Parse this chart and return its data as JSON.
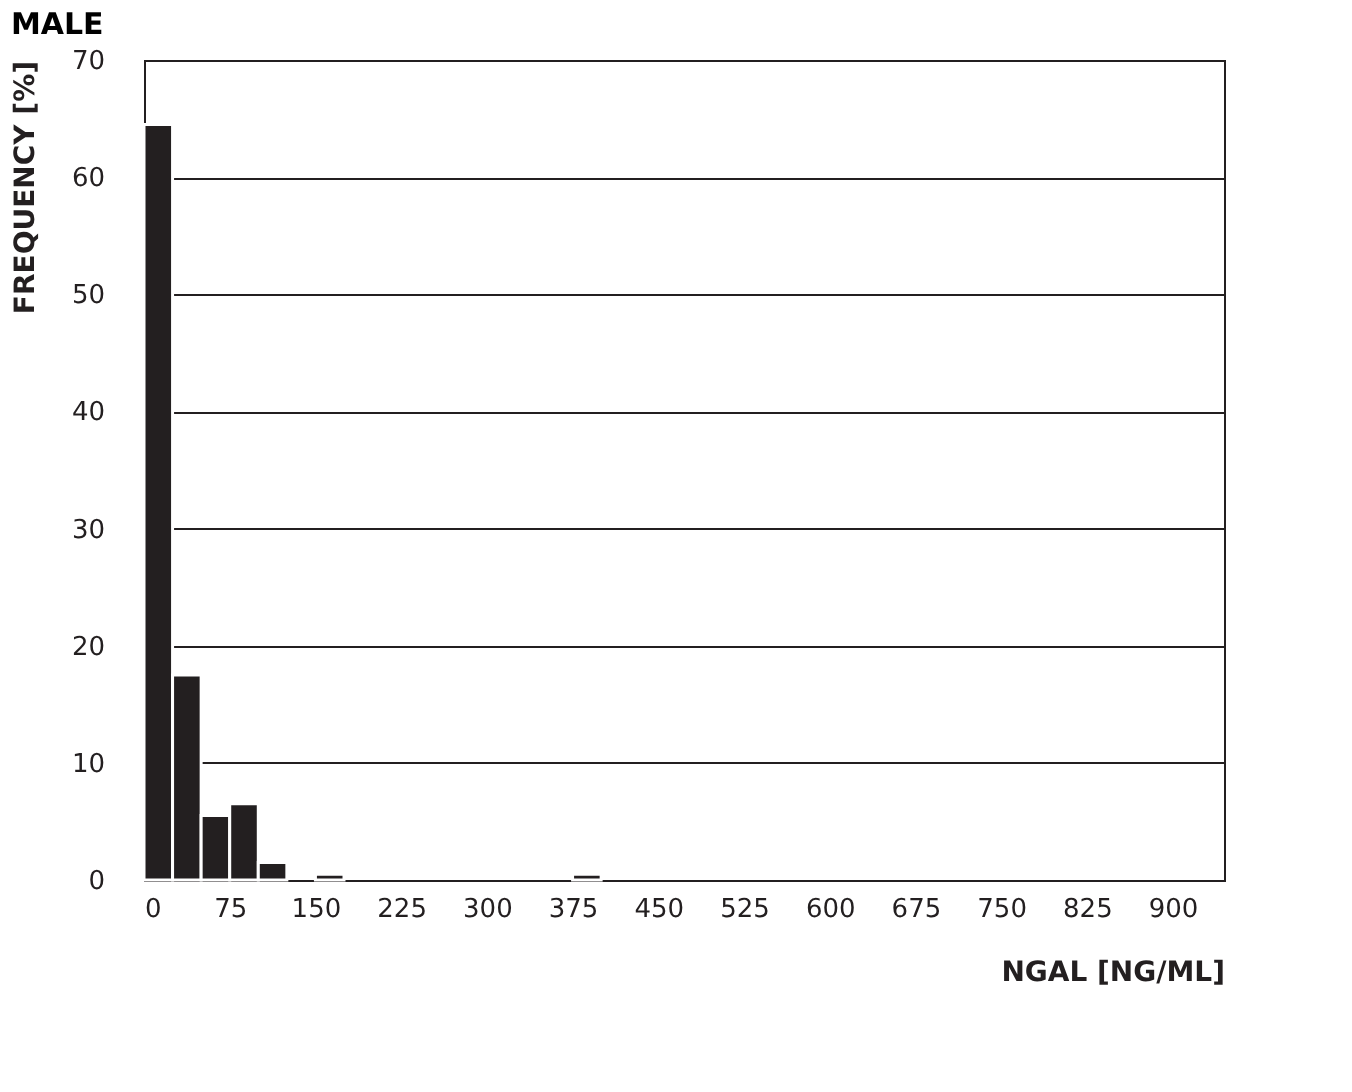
{
  "chart_data": {
    "type": "histogram",
    "title": "MALE",
    "xlabel": "NGAL [NG/ML]",
    "ylabel": "FREQUENCY [%]",
    "bins": [
      0,
      25,
      50,
      75,
      100,
      125,
      150,
      175,
      200,
      225,
      250,
      275,
      300,
      325,
      350,
      375,
      400
    ],
    "values": [
      64.5,
      17.5,
      5.5,
      6.5,
      1.5,
      0,
      0.5,
      0,
      0,
      0,
      0,
      0,
      0,
      0,
      0,
      0.5
    ],
    "color": "#231f20",
    "xlim": [
      0,
      945
    ],
    "xticks": [
      0,
      75,
      150,
      225,
      300,
      375,
      450,
      525,
      600,
      675,
      750,
      825,
      900
    ],
    "ylim": [
      0,
      70
    ],
    "yticks": [
      0,
      10,
      20,
      30,
      40,
      50,
      60,
      70
    ],
    "grid": "y"
  }
}
